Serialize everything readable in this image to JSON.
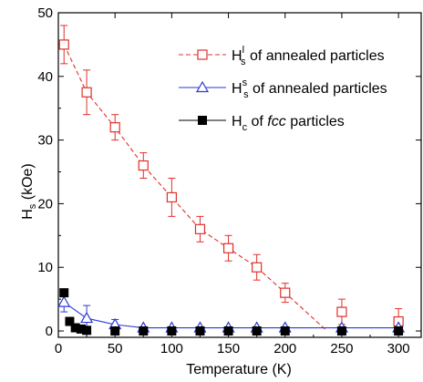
{
  "chart_data": {
    "type": "scatter",
    "xlabel": "Temperature (K)",
    "ylabel_main": "H",
    "ylabel_sub": "s",
    "ylabel_unit": " (kOe)",
    "xlim": [
      0,
      320
    ],
    "ylim": [
      -1,
      50
    ],
    "xticks": [
      0,
      50,
      100,
      150,
      200,
      250,
      300
    ],
    "yticks": [
      0,
      10,
      20,
      30,
      40,
      50
    ],
    "grid": false,
    "legend_position": "top-right",
    "series": [
      {
        "name": "H_s^l of annealed particles",
        "legend": {
          "main": "H",
          "sub": "s",
          "sup": "l",
          "rest": " of annealed particles",
          "italic": ""
        },
        "color": "#e0302a",
        "marker": "open-square",
        "x": [
          5,
          25,
          50,
          75,
          100,
          125,
          150,
          175,
          200,
          250,
          300
        ],
        "y": [
          45,
          37.5,
          32,
          26,
          21,
          16,
          13,
          10,
          6,
          3,
          1.5
        ],
        "err": [
          3,
          3.5,
          2,
          2,
          3,
          2,
          2,
          2,
          1.5,
          2,
          2
        ],
        "fit": {
          "x": [
            5,
            25,
            50,
            75,
            100,
            125,
            150,
            175,
            200,
            237
          ],
          "y": [
            45,
            37.5,
            32,
            26,
            21,
            16,
            13,
            10,
            6,
            0
          ]
        },
        "fit_style": "dashed"
      },
      {
        "name": "H_s^s of annealed particles",
        "legend": {
          "main": "H",
          "sub": "s",
          "sup": "s",
          "rest": " of annealed particles",
          "italic": ""
        },
        "color": "#2a3ad6",
        "marker": "open-triangle",
        "x": [
          5,
          25,
          50,
          75,
          100,
          125,
          150,
          175,
          200,
          250,
          300
        ],
        "y": [
          4.5,
          2,
          1,
          0.5,
          0.5,
          0.5,
          0.5,
          0.5,
          0.5,
          0.5,
          0.5
        ],
        "err": [
          1.5,
          2,
          0.8,
          0,
          0,
          0,
          0,
          0,
          0,
          0,
          0
        ],
        "fit": {
          "x": [
            5,
            25,
            50,
            75,
            100,
            150,
            200,
            250,
            300
          ],
          "y": [
            4.5,
            2,
            1,
            0.5,
            0.5,
            0.5,
            0.5,
            0.5,
            0.5
          ]
        },
        "fit_style": "solid"
      },
      {
        "name": "H_c of fcc particles",
        "legend": {
          "main": "H",
          "sub": "c",
          "sup": "",
          "rest": " of ",
          "italic": "fcc",
          "after": " particles"
        },
        "color": "#000000",
        "marker": "filled-square",
        "x": [
          5,
          10,
          15,
          20,
          25,
          50,
          75,
          100,
          125,
          150,
          175,
          200,
          250,
          300
        ],
        "y": [
          6,
          1.5,
          0.5,
          0.3,
          0.1,
          0,
          0,
          0,
          0,
          0,
          0,
          0,
          0,
          0
        ],
        "err": [],
        "fit": null,
        "fit_style": "none"
      }
    ]
  }
}
